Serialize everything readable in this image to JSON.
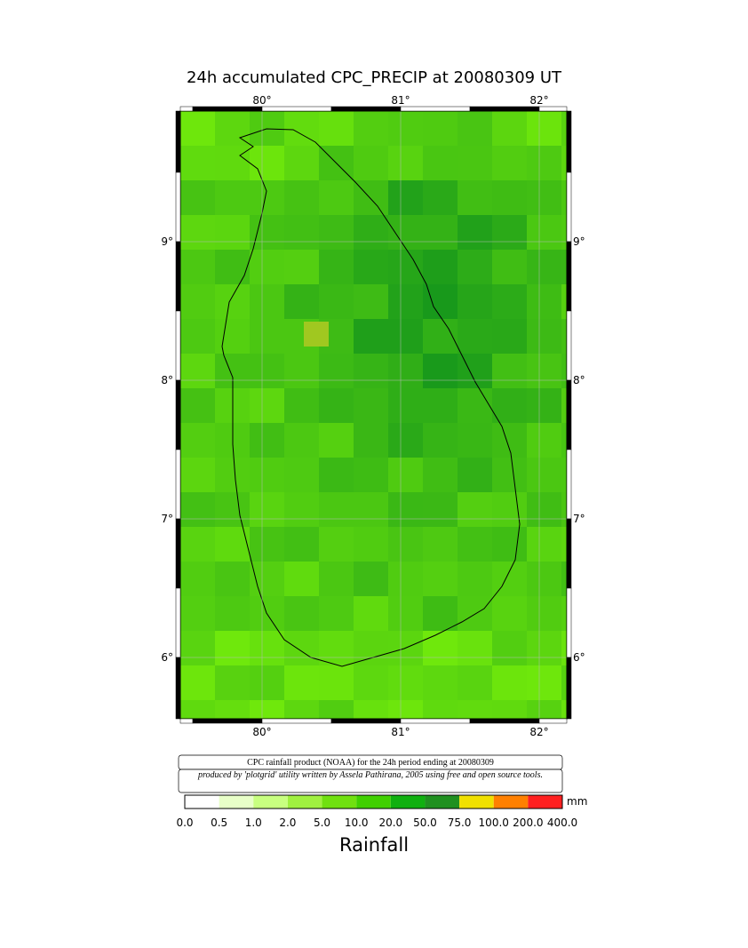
{
  "header": {
    "title": "24h accumulated CPC_PRECIP  at 20080309 UT"
  },
  "map": {
    "lon_labels": [
      "80°",
      "81°",
      "82°"
    ],
    "lat_labels": [
      "9°",
      "8°",
      "7°",
      "6°"
    ]
  },
  "footer": {
    "source": "CPC rainfall product (NOAA) for the 24h period ending at 20080309",
    "credit": "produced by 'plotgrid' utility written by Assela Pathirana, 2005 using free and open source tools."
  },
  "colorbar": {
    "labels": [
      "0.0",
      "0.5",
      "1.0",
      "2.0",
      "5.0",
      "10.0",
      "20.0",
      "50.0",
      "75.0",
      "100.0",
      "200.0",
      "400.0"
    ],
    "colors": [
      "#ffffff",
      "#e8ffc8",
      "#c8ff80",
      "#a0f040",
      "#70e010",
      "#40d000",
      "#10b010",
      "#209020",
      "#f0e000",
      "#ff8000",
      "#ff2020"
    ],
    "unit": "mm",
    "title": "Rainfall"
  }
}
